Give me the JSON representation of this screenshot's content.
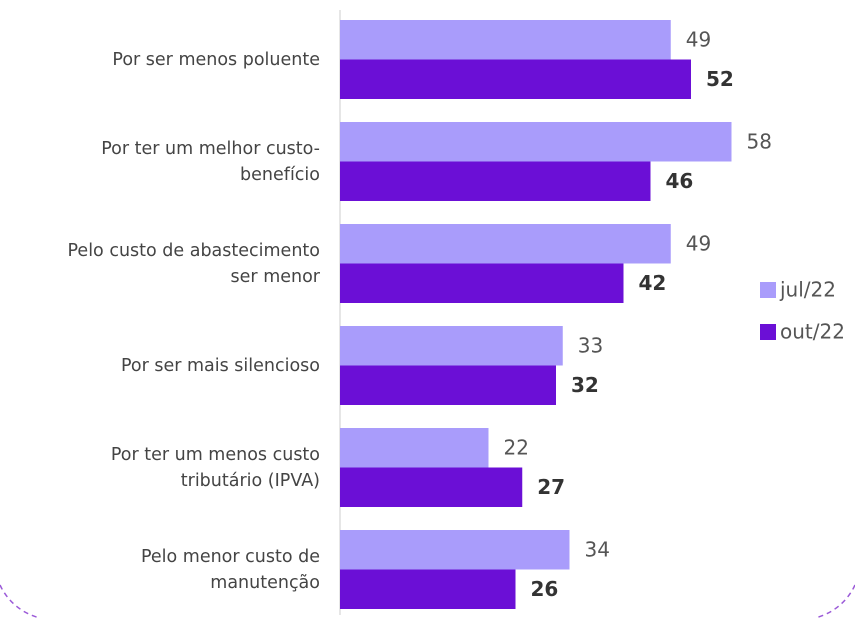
{
  "chart_data": {
    "type": "bar",
    "orientation": "horizontal",
    "categories": [
      "Por ser menos poluente",
      "Por ter um melhor custo-\nbenefício",
      "Pelo custo de abastecimento\nser menor",
      "Por ser mais silencioso",
      "Por ter um menos custo\ntributário (IPVA)",
      "Pelo menor custo de\nmanutenção"
    ],
    "series": [
      {
        "name": "jul/22",
        "color": "#a99cfb",
        "values": [
          49,
          58,
          49,
          33,
          22,
          34
        ]
      },
      {
        "name": "out/22",
        "color": "#6b0fd6",
        "values": [
          52,
          46,
          42,
          32,
          27,
          26
        ]
      }
    ],
    "legend": "right"
  }
}
